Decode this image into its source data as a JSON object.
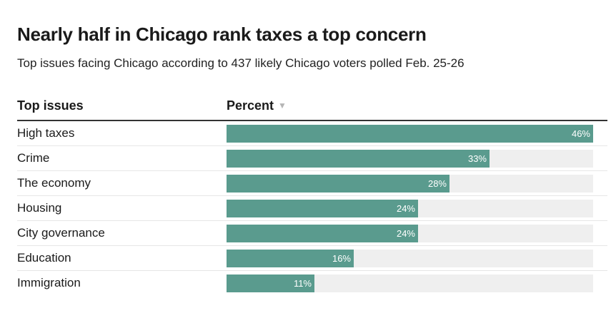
{
  "chart_data": {
    "type": "bar",
    "orientation": "horizontal",
    "title": "Nearly half in Chicago rank taxes a top concern",
    "subtitle": "Top issues facing Chicago according to 437 likely Chicago voters polled Feb. 25-26",
    "columns": {
      "issue_header": "Top issues",
      "percent_header": "Percent"
    },
    "categories": [
      "High taxes",
      "Crime",
      "The economy",
      "Housing",
      "City governance",
      "Education",
      "Immigration"
    ],
    "values": [
      46,
      33,
      28,
      24,
      24,
      16,
      11
    ],
    "value_suffix": "%",
    "xlim": [
      0,
      46
    ],
    "colors": {
      "bar": "#5a9b8e",
      "track": "#efefef"
    }
  }
}
